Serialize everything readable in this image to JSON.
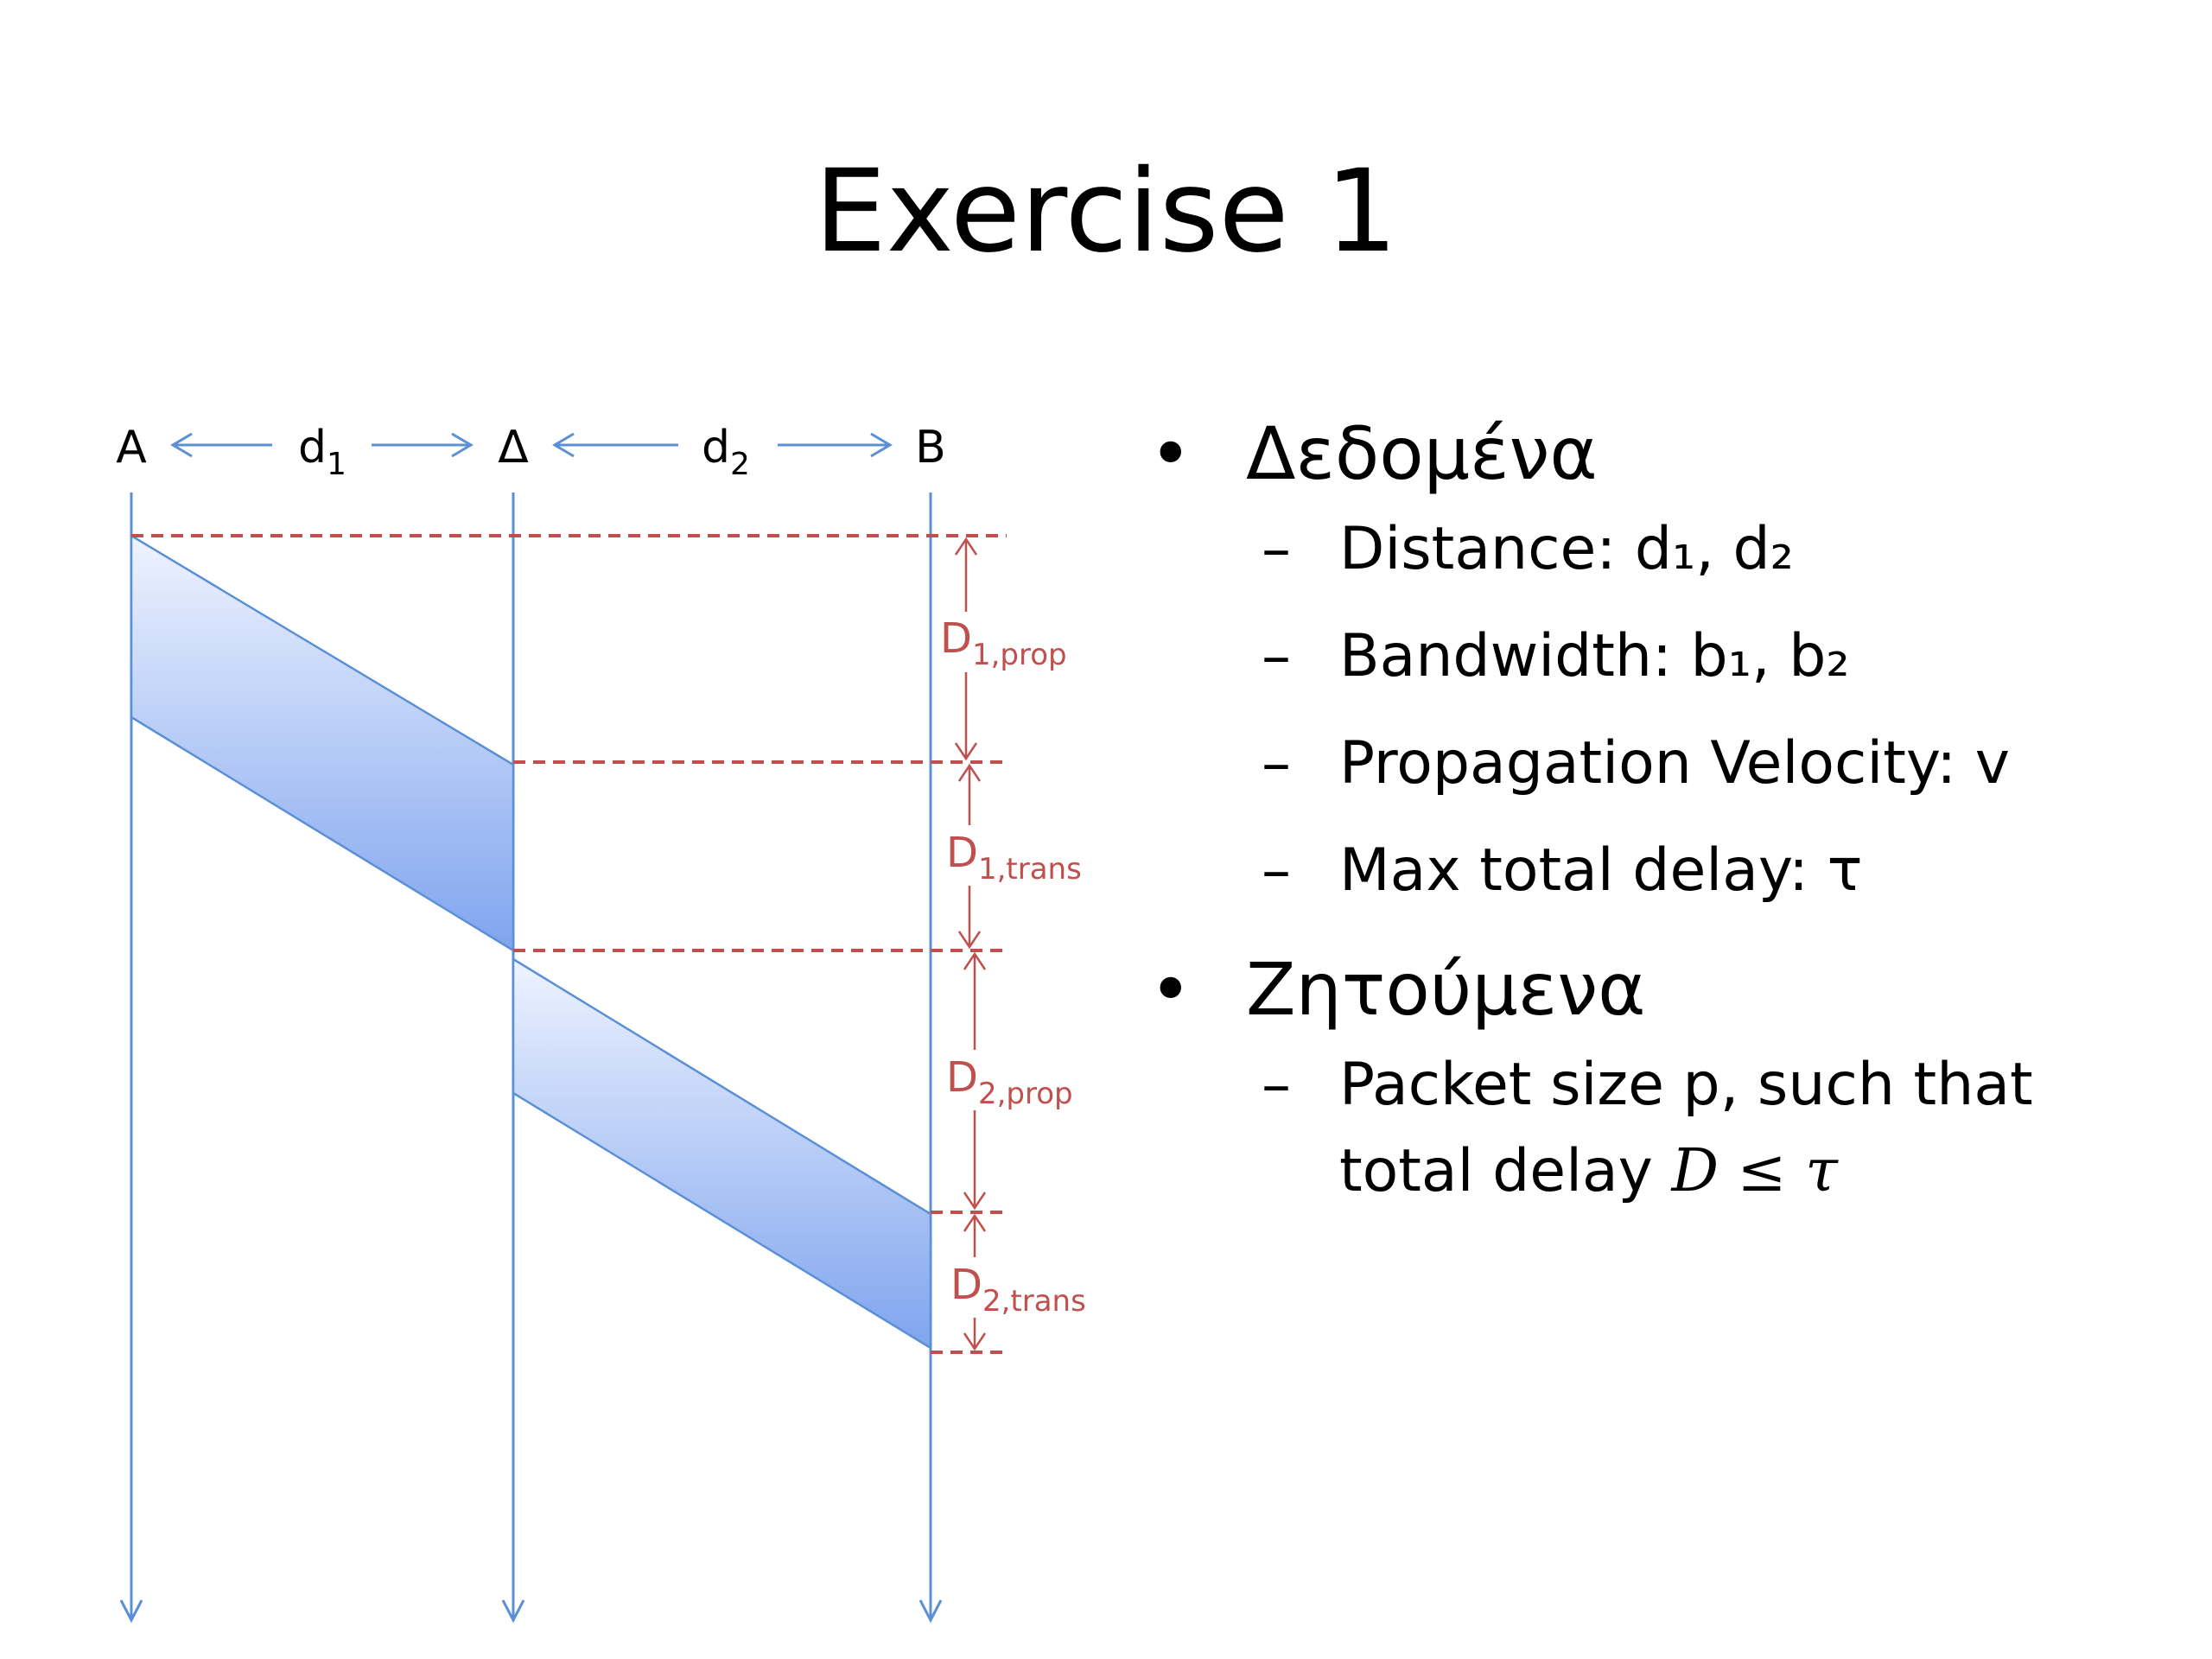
{
  "title": "Exercise 1",
  "diagram": {
    "node_a": "A",
    "node_mid": "Δ",
    "node_b": "B",
    "dist1": {
      "main": "d",
      "sub": "1"
    },
    "dist2": {
      "main": "d",
      "sub": "2"
    },
    "delay_labels": [
      {
        "main": "D",
        "sub": "1,prop"
      },
      {
        "main": "D",
        "sub": "1,trans"
      },
      {
        "main": "D",
        "sub": "2,prop"
      },
      {
        "main": "D",
        "sub": "2,trans"
      }
    ],
    "colors": {
      "axis": "#5b8fd6",
      "delay": "#c0504d",
      "packet_top": "#eef3ff",
      "packet_bottom": "#7fa4ee"
    }
  },
  "bullets": [
    {
      "label": "Δεδομένα",
      "items": [
        "Distance: d₁, d₂",
        "Bandwidth: b₁, b₂",
        "Propagation Velocity: v",
        "Max total delay: τ"
      ]
    },
    {
      "label": "Ζητούμενα",
      "items": [
        {
          "line1": "Packet size p, such that",
          "line2_text": "total delay ",
          "line2_math": "D ≤ τ"
        }
      ]
    }
  ],
  "icons": {
    "bullet": "•",
    "dash": "–"
  }
}
